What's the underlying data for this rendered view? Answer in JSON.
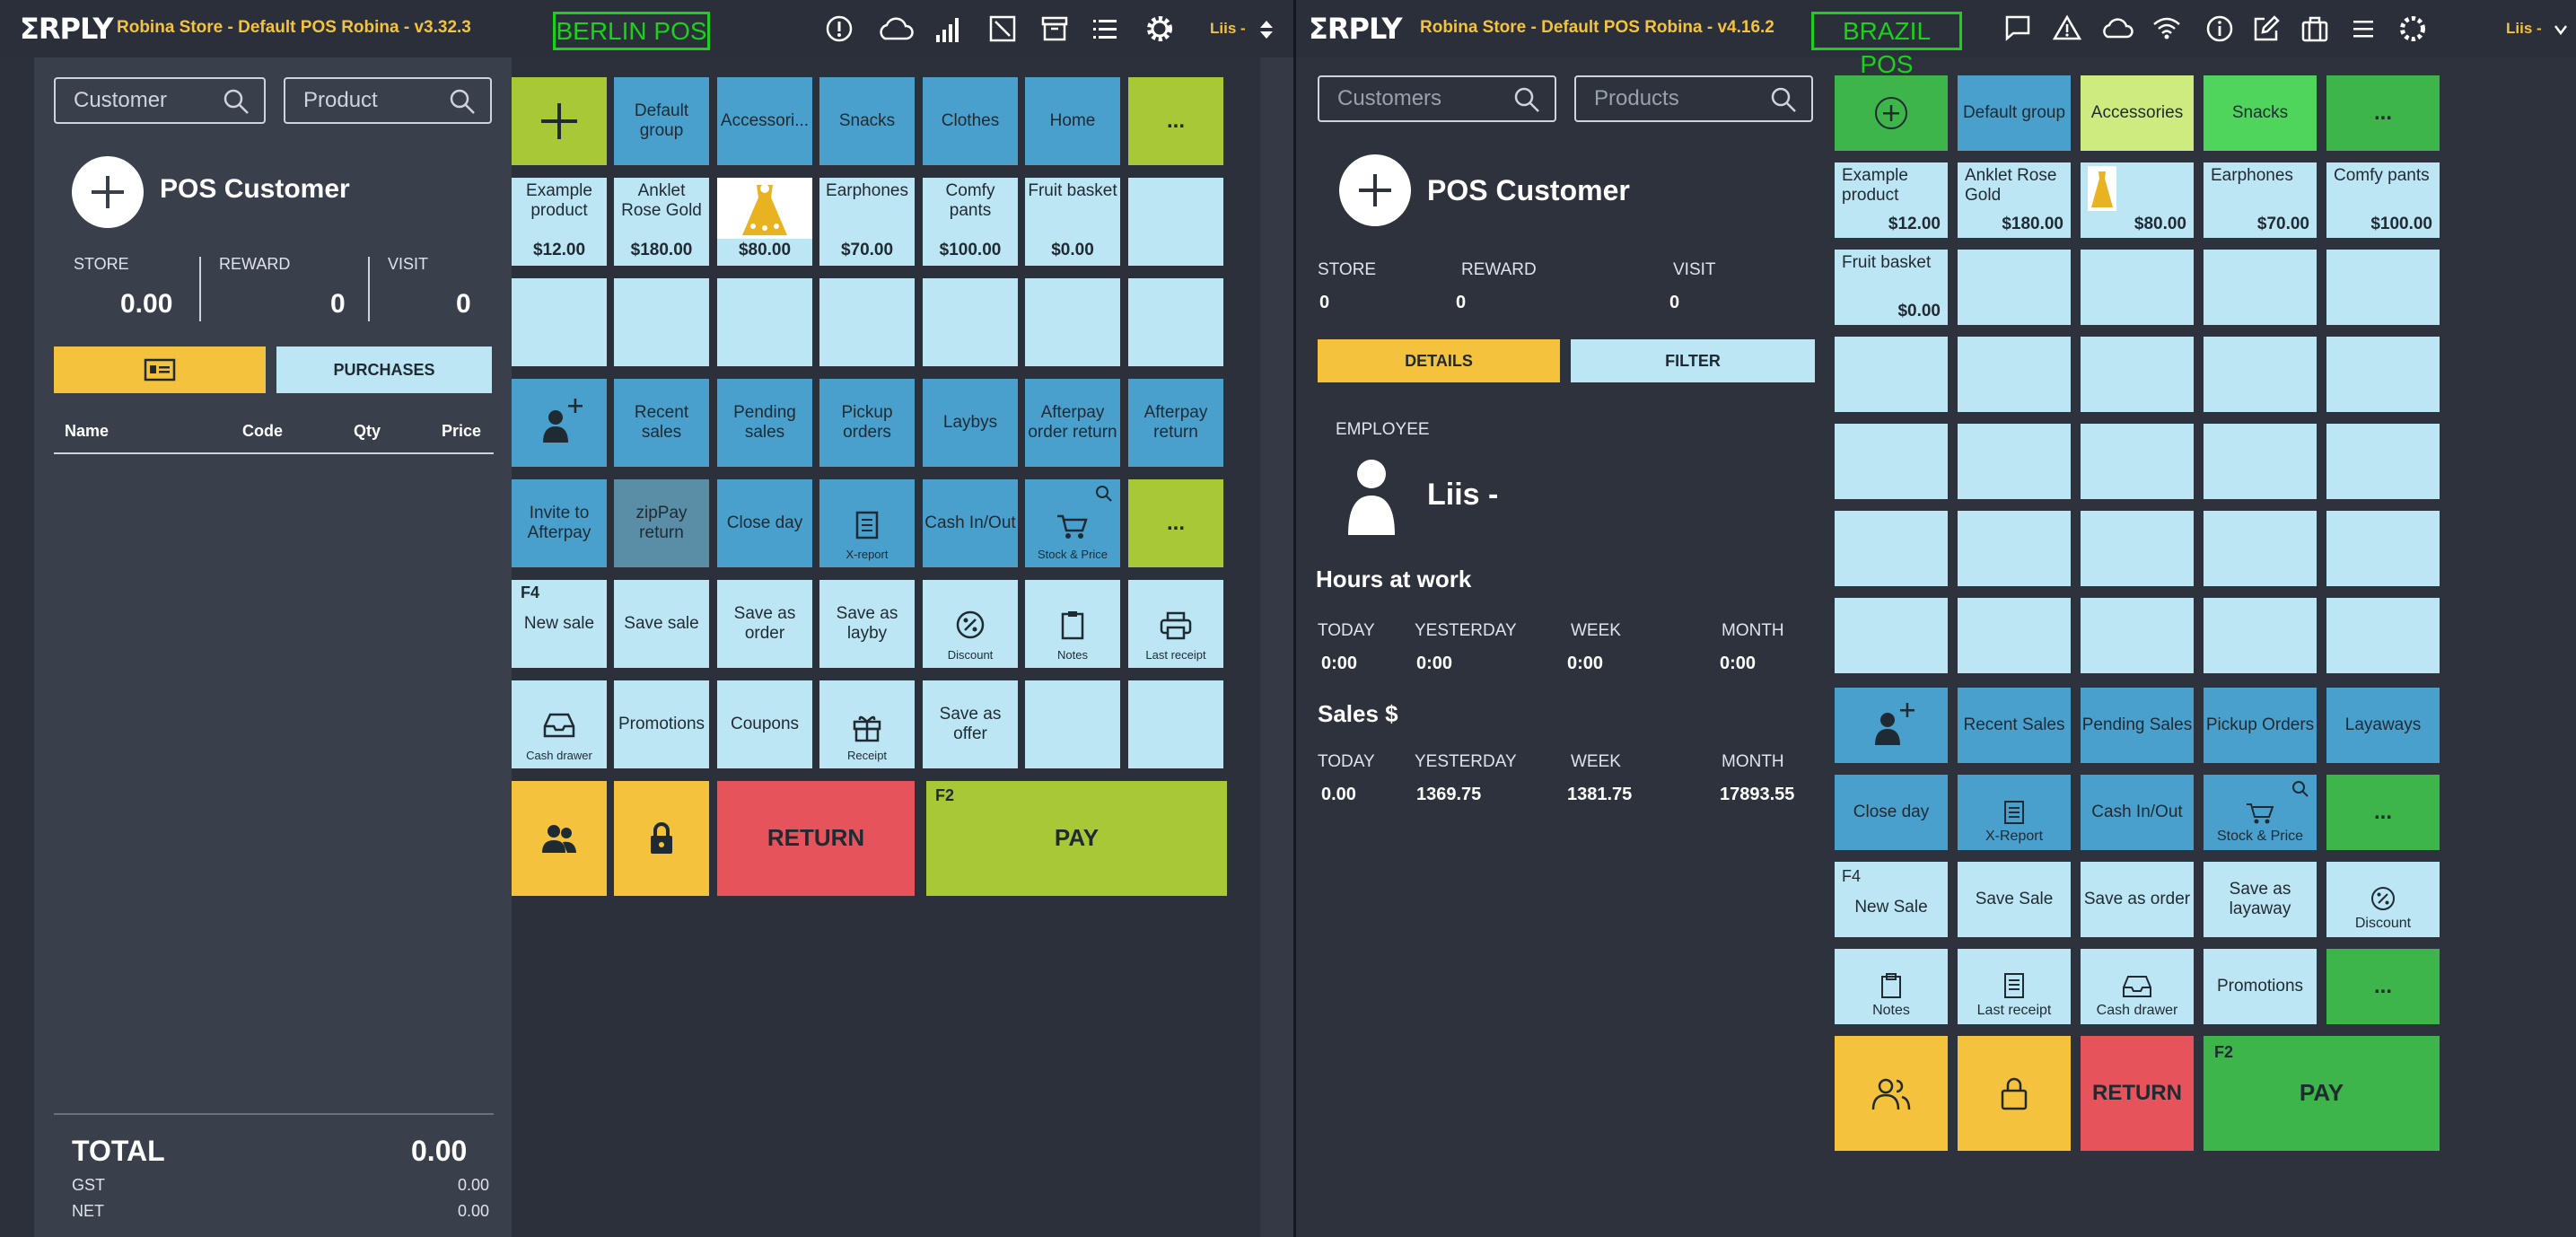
{
  "left": {
    "logo": "ΣRPLY",
    "store_title": "Robina Store - Default POS Robina - v3.32.3",
    "pos_name": "BERLIN POS",
    "user": "Liis -",
    "search": {
      "customer": "Customer",
      "product": "Product"
    },
    "customer": {
      "name": "POS Customer",
      "store_label": "STORE",
      "store_value": "0.00",
      "reward_label": "REWARD",
      "reward_value": "0",
      "visit_label": "VISIT",
      "visit_value": "0"
    },
    "purchases_label": "PURCHASES",
    "cart_cols": [
      "Name",
      "Code",
      "Qty",
      "Price"
    ],
    "totals": {
      "total_label": "TOTAL",
      "total": "0.00",
      "gst_label": "GST",
      "gst": "0.00",
      "net_label": "NET",
      "net": "0.00"
    },
    "groups": [
      "Default group",
      "Accessori...",
      "Snacks",
      "Clothes",
      "Home",
      "..."
    ],
    "products": [
      {
        "name": "Example product",
        "price": "$12.00"
      },
      {
        "name": "Anklet Rose Gold",
        "price": "$180.00"
      },
      {
        "name": "",
        "price": "$80.00"
      },
      {
        "name": "Earphones",
        "price": "$70.00"
      },
      {
        "name": "Comfy pants",
        "price": "$100.00"
      },
      {
        "name": "Fruit basket",
        "price": "$0.00"
      }
    ],
    "row4": [
      "",
      "Recent sales",
      "Pending sales",
      "Pickup orders",
      "Laybys",
      "Afterpay order return",
      "Afterpay return"
    ],
    "row5": [
      "Invite to Afterpay",
      "zipPay return",
      "Close day",
      "X-report",
      "Cash In/Out",
      "Stock & Price",
      "..."
    ],
    "row6": [
      "New sale",
      "Save sale",
      "Save as order",
      "Save as layby",
      "Discount",
      "Notes",
      "Last receipt"
    ],
    "f4": "F4",
    "f2": "F2",
    "row7": [
      "Cash drawer",
      "Promotions",
      "Coupons",
      "Receipt",
      "Save as offer"
    ],
    "return_label": "RETURN",
    "pay_label": "PAY"
  },
  "right": {
    "logo": "ΣRPLY",
    "store_title": "Robina Store - Default POS Robina - v4.16.2",
    "pos_name": "BRAZIL POS",
    "user": "Liis -",
    "search": {
      "customer": "Customers",
      "product": "Products"
    },
    "customer": {
      "name": "POS Customer",
      "store_label": "STORE",
      "store_value": "0",
      "reward_label": "REWARD",
      "reward_value": "0",
      "visit_label": "VISIT",
      "visit_value": "0"
    },
    "details_label": "DETAILS",
    "filter_label": "FILTER",
    "employee_label": "EMPLOYEE",
    "employee_name": "Liis -",
    "hours": {
      "title": "Hours at work",
      "cols": [
        "TODAY",
        "YESTERDAY",
        "WEEK",
        "MONTH"
      ],
      "values": [
        "0:00",
        "0:00",
        "0:00",
        "0:00"
      ]
    },
    "sales": {
      "title": "Sales $",
      "cols": [
        "TODAY",
        "YESTERDAY",
        "WEEK",
        "MONTH"
      ],
      "values": [
        "0.00",
        "1369.75",
        "1381.75",
        "17893.55"
      ]
    },
    "groups": [
      "Default group",
      "Accessories",
      "Snacks",
      "..."
    ],
    "products": [
      {
        "name": "Example product",
        "price": "$12.00"
      },
      {
        "name": "Anklet Rose Gold",
        "price": "$180.00"
      },
      {
        "name": "",
        "price": "$80.00"
      },
      {
        "name": "Earphones",
        "price": "$70.00"
      },
      {
        "name": "Comfy pants",
        "price": "$100.00"
      },
      {
        "name": "Fruit basket",
        "price": "$0.00"
      }
    ],
    "row_a": [
      "",
      "Recent Sales",
      "Pending Sales",
      "Pickup Orders",
      "Layaways"
    ],
    "row_b": [
      "Close day",
      "X-Report",
      "Cash In/Out",
      "Stock & Price",
      "..."
    ],
    "row_c": [
      "New Sale",
      "Save Sale",
      "Save as order",
      "Save as layaway",
      "Discount"
    ],
    "row_d": [
      "Notes",
      "Last receipt",
      "Cash drawer",
      "Promotions",
      "..."
    ],
    "f4": "F4",
    "f2": "F2",
    "return_label": "RETURN",
    "pay_label": "PAY"
  },
  "colors": {
    "light_blue": "#bde6f5",
    "dark_blue": "#4aa0cc",
    "lime": "#a9c836",
    "yellow": "#f4c23c",
    "red": "#e7535b",
    "green": "#3db54a",
    "pos_label": "#19d219"
  }
}
